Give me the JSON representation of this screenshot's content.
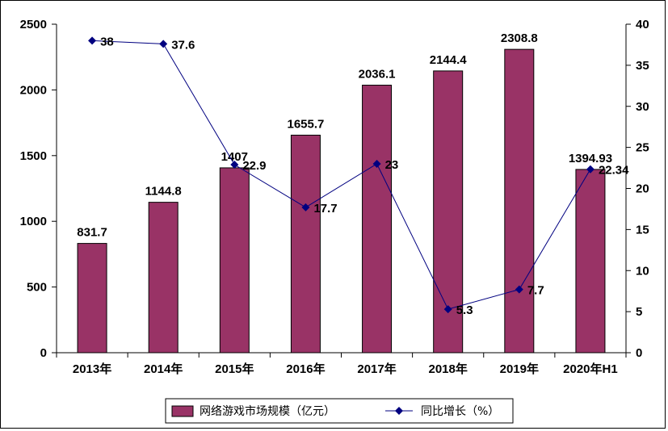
{
  "chart_data": {
    "type": "bar+line",
    "categories": [
      "2013年",
      "2014年",
      "2015年",
      "2016年",
      "2017年",
      "2018年",
      "2019年",
      "2020年H1"
    ],
    "series": [
      {
        "name": "网络游戏市场规模（亿元）",
        "type": "bar",
        "axis": "left",
        "values": [
          831.7,
          1144.8,
          1407,
          1655.7,
          2036.1,
          2144.4,
          2308.8,
          1394.93
        ],
        "labels": [
          "831.7",
          "1144.8",
          "1407",
          "1655.7",
          "2036.1",
          "2144.4",
          "2308.8",
          "1394.93"
        ],
        "color": "#993366"
      },
      {
        "name": "同比增长（%）",
        "type": "line",
        "axis": "right",
        "values": [
          38,
          37.6,
          22.9,
          17.7,
          23,
          5.3,
          7.7,
          22.34
        ],
        "labels": [
          "38",
          "37.6",
          "22.9",
          "17.7",
          "23",
          "5.3",
          "7.7",
          "22.34"
        ],
        "color": "#000080"
      }
    ],
    "y_left": {
      "range": [
        0,
        2500
      ],
      "ticks": [
        "0",
        "500",
        "1000",
        "1500",
        "2000",
        "2500"
      ]
    },
    "y_right": {
      "range": [
        0,
        40
      ],
      "ticks": [
        "0",
        "5",
        "10",
        "15",
        "20",
        "25",
        "30",
        "35",
        "40"
      ]
    },
    "legend": {
      "position": "bottom"
    },
    "grid": false
  }
}
